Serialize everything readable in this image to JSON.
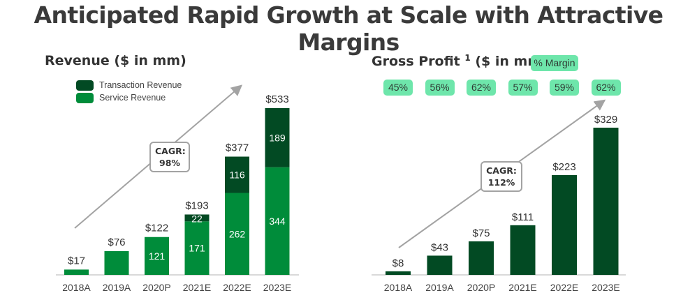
{
  "page": {
    "title": "Anticipated Rapid Growth at Scale with Attractive Margins"
  },
  "colors": {
    "service": "#008c3a",
    "transaction": "#024a23",
    "gross_profit": "#024a23",
    "margin_badge": "#6ee6ab",
    "axis": "#d9d9d9",
    "cagr_arrow": "#a3a3a3"
  },
  "chart_data": [
    {
      "type": "bar",
      "stacked": true,
      "title": "Revenue ($ in mm)",
      "xlabel": "",
      "ylabel": "",
      "categories": [
        "2018A",
        "2019A",
        "2020P",
        "2021E",
        "2022E",
        "2023E"
      ],
      "series": [
        {
          "name": "Service Revenue",
          "values": [
            17,
            76,
            121,
            171,
            262,
            344
          ],
          "labels": [
            "",
            "",
            "121",
            "171",
            "262",
            "344"
          ]
        },
        {
          "name": "Transaction Revenue",
          "values": [
            0,
            0,
            1,
            22,
            116,
            189
          ],
          "labels": [
            "",
            "",
            "",
            "22",
            "116",
            "189"
          ]
        }
      ],
      "totals": [
        "$17",
        "$76",
        "$122",
        "$193",
        "$377",
        "$533"
      ],
      "legend": [
        "Transaction Revenue",
        "Service Revenue"
      ],
      "legend_position": "top-left",
      "annotation": {
        "label": "CAGR:",
        "value": "98%"
      },
      "grid": false,
      "ylim": [
        0,
        533
      ]
    },
    {
      "type": "bar",
      "title": "Gross Profit",
      "title_superscript": "1",
      "title_suffix": "($ in mm)",
      "xlabel": "",
      "ylabel": "",
      "categories": [
        "2018A",
        "2019A",
        "2020P",
        "2021E",
        "2022E",
        "2023E"
      ],
      "values": [
        8,
        43,
        75,
        111,
        223,
        329
      ],
      "value_labels": [
        "$8",
        "$43",
        "$75",
        "$111",
        "$223",
        "$329"
      ],
      "margin_label": "% Margin",
      "margins": [
        "45%",
        "56%",
        "62%",
        "57%",
        "59%",
        "62%"
      ],
      "annotation": {
        "label": "CAGR:",
        "value": "112%"
      },
      "grid": false,
      "ylim": [
        0,
        329
      ]
    }
  ]
}
